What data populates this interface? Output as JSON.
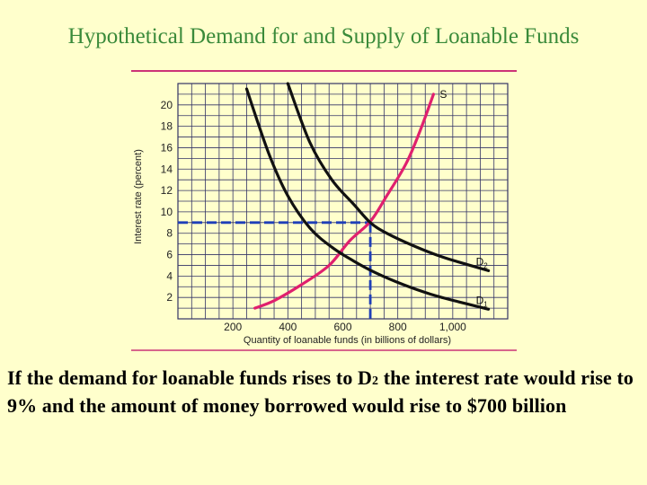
{
  "slide": {
    "title": "Hypothetical Demand for and Supply of Loanable Funds",
    "caption_before": "If the demand for loanable funds rises to D",
    "caption_sub": "2",
    "caption_after": " the interest rate would rise to 9% and the amount of money borrowed would rise to $700 billion"
  },
  "colors": {
    "background": "#ffffcc",
    "title": "#3a8a3a",
    "grid_border": "#333366",
    "rule": "#cc3377",
    "supply": "#e0206e",
    "demand": "#111111",
    "equilibrium_guide": "#1f3fb8"
  },
  "chart_data": {
    "type": "line",
    "title": "",
    "xlabel": "Quantity of loanable funds (in billions of dollars)",
    "ylabel": "Interest rate (percent)",
    "xlim": [
      0,
      1200
    ],
    "ylim": [
      0,
      22
    ],
    "x_ticks": [
      {
        "value": 200,
        "label": "200"
      },
      {
        "value": 400,
        "label": "400"
      },
      {
        "value": 600,
        "label": "600"
      },
      {
        "value": 800,
        "label": "800"
      },
      {
        "value": 1000,
        "label": "1,000"
      }
    ],
    "y_ticks": [
      2,
      4,
      6,
      8,
      10,
      12,
      14,
      16,
      18,
      20
    ],
    "grid": true,
    "series": [
      {
        "name": "S",
        "color": "#e0206e",
        "points": [
          [
            280,
            1
          ],
          [
            350,
            1.7
          ],
          [
            450,
            3.2
          ],
          [
            550,
            5
          ],
          [
            625,
            7.3
          ],
          [
            700,
            9.1
          ],
          [
            760,
            11.5
          ],
          [
            830,
            14.5
          ],
          [
            880,
            17.5
          ],
          [
            930,
            21
          ]
        ]
      },
      {
        "name": "D1",
        "label_main": "D",
        "label_sub": "1",
        "color": "#111111",
        "points": [
          [
            250,
            21.5
          ],
          [
            330,
            15.5
          ],
          [
            400,
            11.5
          ],
          [
            480,
            8.5
          ],
          [
            560,
            6.7
          ],
          [
            640,
            5.4
          ],
          [
            720,
            4.3
          ],
          [
            820,
            3.2
          ],
          [
            920,
            2.3
          ],
          [
            1020,
            1.6
          ],
          [
            1130,
            0.9
          ]
        ]
      },
      {
        "name": "D2",
        "label_main": "D",
        "label_sub": "2",
        "color": "#111111",
        "points": [
          [
            400,
            22
          ],
          [
            480,
            16.5
          ],
          [
            560,
            13
          ],
          [
            640,
            10.7
          ],
          [
            700,
            9
          ],
          [
            760,
            8
          ],
          [
            860,
            6.8
          ],
          [
            960,
            5.8
          ],
          [
            1050,
            5.1
          ],
          [
            1130,
            4.5
          ]
        ]
      }
    ],
    "equilibrium": {
      "x": 700,
      "y": 9
    }
  }
}
